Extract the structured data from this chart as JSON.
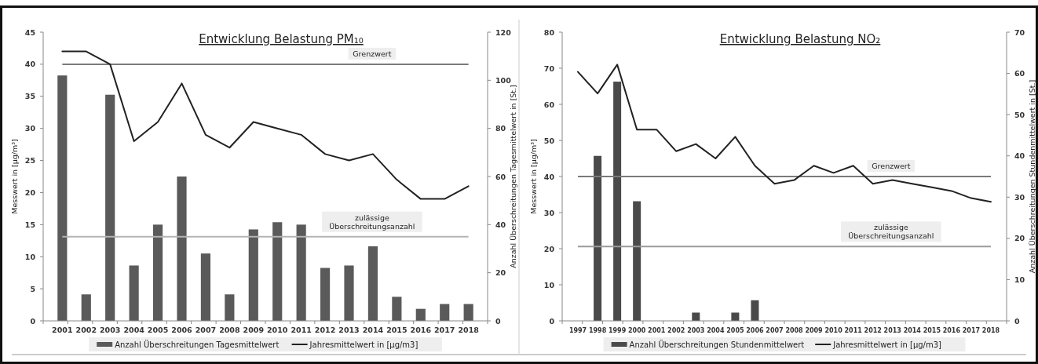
{
  "chart_data": [
    {
      "type": "bar",
      "title": "Entwicklung Belastung PM₁₀",
      "ylabel": "Messwert in [µg/m³]",
      "y2label": "Anzahl Überschreitungen Tagesmittelwert in [St.]",
      "categories": [
        "2001",
        "2002",
        "2003",
        "2004",
        "2005",
        "2006",
        "2007",
        "2008",
        "2009",
        "2010",
        "2011",
        "2012",
        "2013",
        "2014",
        "2015",
        "2016",
        "2017",
        "2018"
      ],
      "series": [
        {
          "name": "Anzahl Überschreitungen Tagesmittelwert",
          "axis": "y2",
          "color": "#5a5a5a",
          "values": [
            102,
            11,
            94,
            23,
            40,
            60,
            28,
            11,
            38,
            41,
            40,
            22,
            23,
            31,
            10,
            5,
            7,
            7
          ]
        },
        {
          "name": "Jahresmittelwert in [µg/m3]",
          "type": "line",
          "color": "#222222",
          "values": [
            42,
            42,
            40,
            28,
            31,
            37,
            29,
            27,
            31,
            30,
            29,
            26,
            25,
            26,
            22,
            19,
            19,
            21
          ]
        }
      ],
      "ylim": [
        0,
        45
      ],
      "yticks": [
        0,
        5,
        10,
        15,
        20,
        25,
        30,
        35,
        40,
        45
      ],
      "y2lim": [
        0,
        120
      ],
      "y2ticks": [
        0,
        20,
        40,
        60,
        80,
        100,
        120
      ],
      "ref_lines": [
        {
          "axis": "y",
          "value": 40,
          "label": "Grenzwert",
          "color": "#7a7a7a"
        },
        {
          "axis": "y2",
          "value": 35,
          "label": "zulässige Überschreitungsanzahl",
          "color": "#b4b4b4"
        }
      ],
      "legend": "bottom",
      "grid": false
    },
    {
      "type": "bar",
      "title": "Entwicklung Belastung NO₂",
      "ylabel": "Messwert in [µg/m³]",
      "y2label": "Anzahl Überschreitungen Stundenmittelwert in [St.]",
      "categories": [
        "1997",
        "1998",
        "1999",
        "2000",
        "2001",
        "2002",
        "2003",
        "2004",
        "2005",
        "2006",
        "2007",
        "2008",
        "2009",
        "2010",
        "2011",
        "2012",
        "2013",
        "2014",
        "2015",
        "2016",
        "2017",
        "2018"
      ],
      "series": [
        {
          "name": "Anzahl Überschreitungen Stundenmittelwert",
          "axis": "y2",
          "color": "#4a4a4a",
          "values": [
            0,
            40,
            58,
            29,
            0,
            0,
            2,
            0,
            2,
            5,
            0,
            0,
            0,
            0,
            0,
            0,
            0,
            0,
            0,
            0,
            0,
            0
          ]
        },
        {
          "name": "Jahresmittelwert in [µg/m3]",
          "type": "line",
          "color": "#222222",
          "values": [
            69,
            63,
            71,
            53,
            53,
            47,
            49,
            45,
            51,
            43,
            38,
            39,
            43,
            41,
            43,
            38,
            39,
            38,
            37,
            36,
            34,
            33
          ]
        }
      ],
      "ylim": [
        0,
        80
      ],
      "yticks": [
        0,
        10,
        20,
        30,
        40,
        50,
        60,
        70,
        80
      ],
      "y2lim": [
        0,
        70
      ],
      "y2ticks": [
        0,
        10,
        20,
        30,
        40,
        50,
        60,
        70
      ],
      "ref_lines": [
        {
          "axis": "y",
          "value": 40,
          "label": "Grenzwert",
          "color": "#7a7a7a"
        },
        {
          "axis": "y2",
          "value": 18,
          "label": "zulässige Überschreitungsanzahl",
          "color": "#9a9a9a"
        }
      ],
      "legend": "bottom",
      "grid": false
    }
  ]
}
